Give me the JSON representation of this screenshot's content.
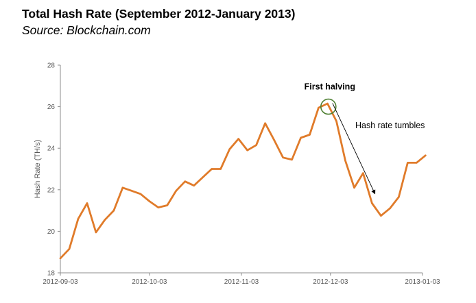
{
  "chart_data": {
    "type": "line",
    "title": "Total Hash Rate (September 2012-January 2013)",
    "subtitle": "Source: Blockchain.com",
    "xlabel": "",
    "ylabel": "Hash Rate (TH/s)",
    "ylim": [
      18,
      28
    ],
    "yticks": [
      "18",
      "20",
      "22",
      "24",
      "26",
      "28"
    ],
    "xticks": [
      {
        "label": "2012-09-03",
        "x": 0
      },
      {
        "label": "2012-10-03",
        "x": 30
      },
      {
        "label": "2012-11-03",
        "x": 61
      },
      {
        "label": "2012-12-03",
        "x": 91
      },
      {
        "label": "2013-01-03",
        "x": 122
      }
    ],
    "xlim": [
      0,
      122
    ],
    "grid": false,
    "line_color": "#E07B2A",
    "series": [
      {
        "name": "",
        "x": [
          0,
          3,
          6,
          9,
          12,
          15,
          18,
          21,
          24,
          27,
          30,
          33,
          36,
          39,
          42,
          45,
          48,
          51,
          54,
          57,
          60,
          63,
          66,
          69,
          72,
          75,
          78,
          81,
          84,
          87,
          90,
          93,
          96,
          99,
          102,
          105,
          108,
          111,
          114,
          117,
          120,
          123
        ],
        "values": [
          18.7,
          19.15,
          20.6,
          21.35,
          19.95,
          20.55,
          21.0,
          22.1,
          21.95,
          21.8,
          21.45,
          21.15,
          21.25,
          21.95,
          22.4,
          22.2,
          22.6,
          23.0,
          23.0,
          23.95,
          24.45,
          23.9,
          24.15,
          25.2,
          24.4,
          23.55,
          23.45,
          24.5,
          24.65,
          25.95,
          26.15,
          25.3,
          23.4,
          22.1,
          22.8,
          21.35,
          20.75,
          21.1,
          21.65,
          23.3,
          23.3,
          23.65
        ]
      }
    ],
    "annotations": [
      {
        "text": "First halving",
        "x": 90.3,
        "y": 26.0,
        "marker": "circle",
        "marker_color": "#4E7F32"
      },
      {
        "text": "Hash rate tumbles",
        "arrow_from": [
          91,
          26.0
        ],
        "arrow_to": [
          106,
          21.8
        ]
      }
    ]
  }
}
